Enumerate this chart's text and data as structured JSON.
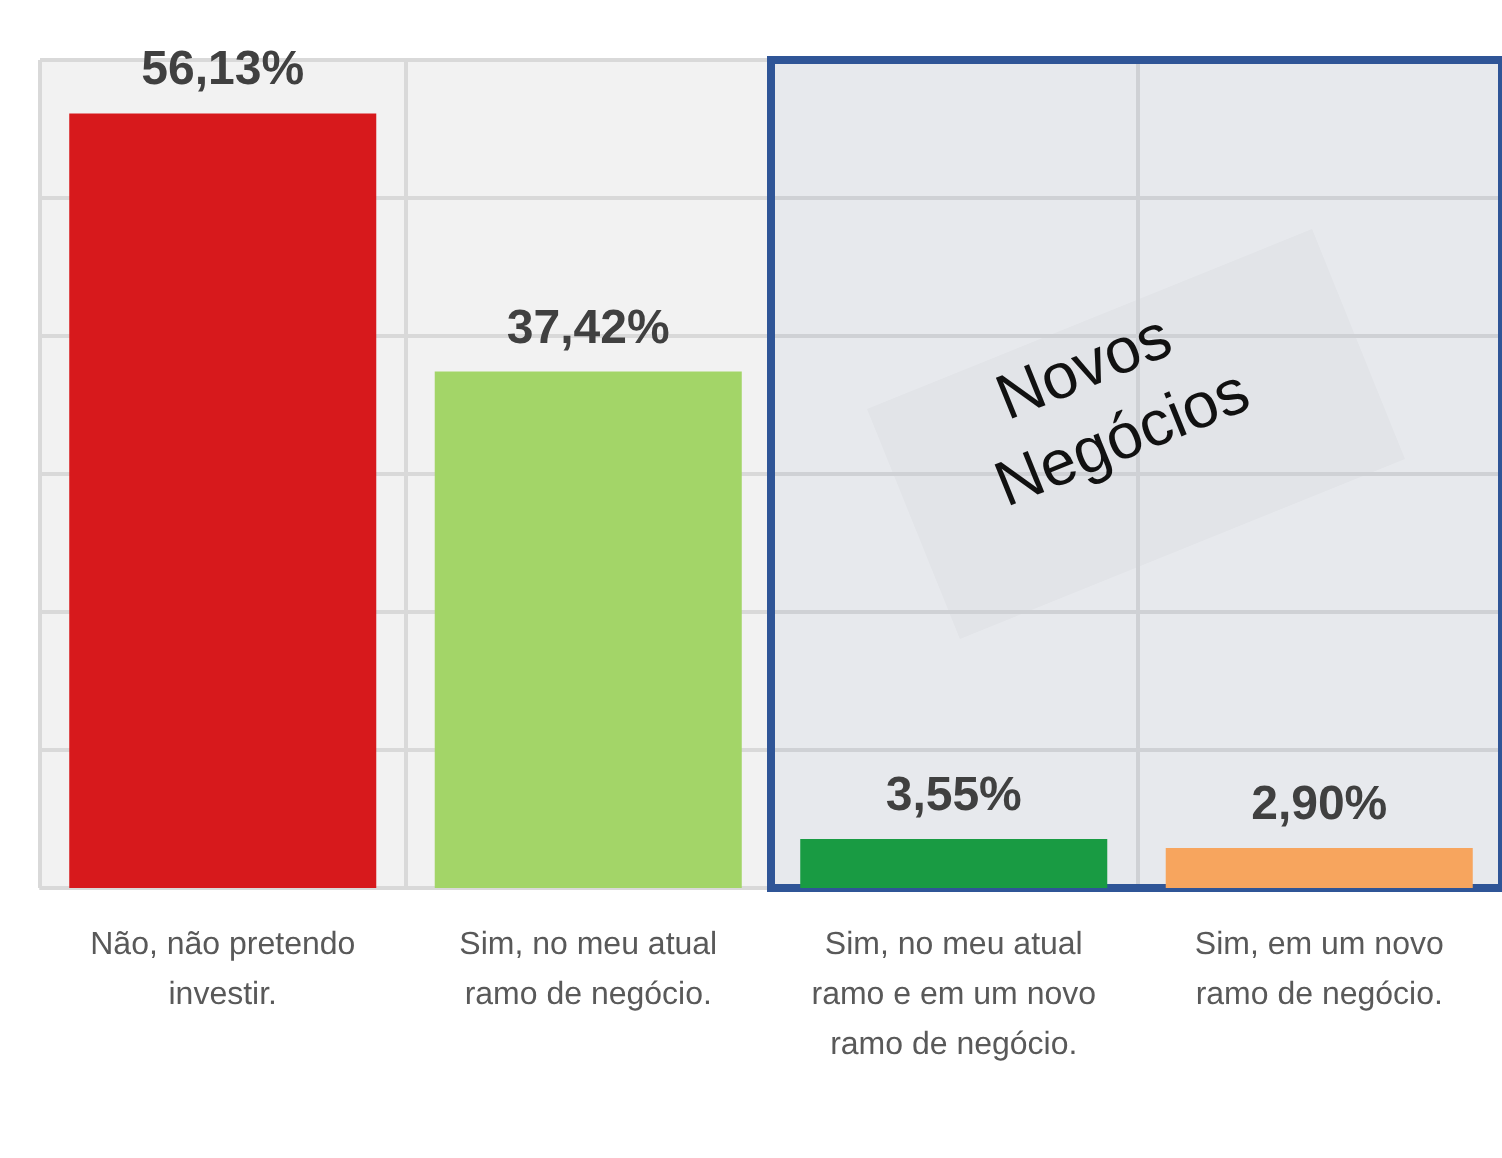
{
  "chart_data": {
    "type": "bar",
    "categories": [
      "Não, não pretendo investir.",
      "Sim, no meu atual ramo de negócio.",
      "Sim, no meu atual ramo e em um novo ramo de negócio.",
      "Sim, em um novo ramo de negócio."
    ],
    "values": [
      56.13,
      37.42,
      3.55,
      2.9
    ],
    "colors": [
      "#d7191c",
      "#a3d568",
      "#199b43",
      "#f7a55e"
    ],
    "value_labels": [
      "56,13%",
      "37,42%",
      "3,55%",
      "2,90%"
    ],
    "ylim": [
      0,
      60
    ],
    "yticks": [
      {
        "value": 0,
        "label": null
      },
      {
        "value": 10,
        "label": null
      },
      {
        "value": 20,
        "label": null
      },
      {
        "value": 30,
        "label": null
      },
      {
        "value": 40,
        "label": null
      },
      {
        "value": 50,
        "label": null
      },
      {
        "value": 60,
        "label": null
      }
    ],
    "tick_labels": "x",
    "grid": true,
    "bands": [
      {
        "axis": "x",
        "from": "Sim, no meu atual ramo e em um novo ramo de negócio.",
        "to": "Sim, em um novo ramo de negócio.",
        "label": "Novos Negócios",
        "color": "#2f5597"
      }
    ]
  }
}
